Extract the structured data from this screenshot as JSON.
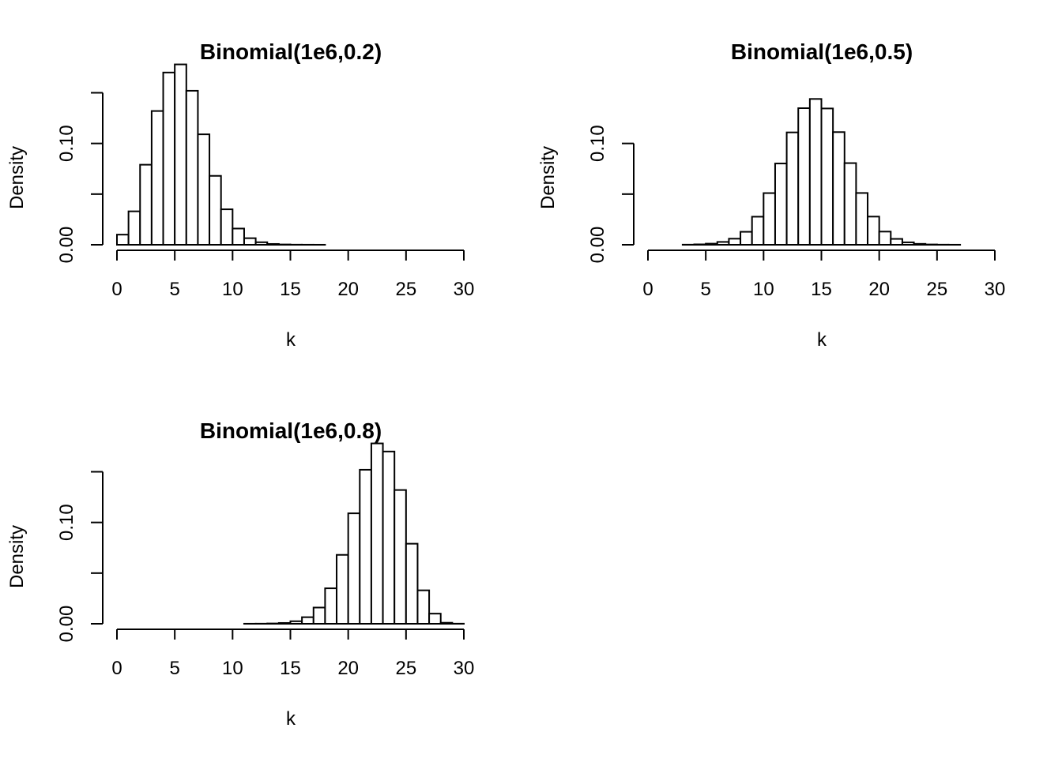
{
  "chart_data": [
    {
      "type": "bar",
      "title": "Binomial(1e6,0.2)",
      "xlabel": "k",
      "ylabel": "Density",
      "xlim": [
        0,
        30
      ],
      "ylim": [
        0,
        0.15
      ],
      "x_ticks": [
        0,
        5,
        10,
        15,
        20,
        25,
        30
      ],
      "y_ticks": [
        0,
        0.05,
        0.1,
        0.15
      ],
      "y_tick_labels": [
        "0.00",
        "",
        "0.10",
        ""
      ],
      "bin_width": 1,
      "bin_starts": [
        0,
        1,
        2,
        3,
        4,
        5,
        6,
        7,
        8,
        9,
        10,
        11,
        12,
        13,
        14,
        15,
        16,
        17
      ],
      "values": [
        0.01,
        0.033,
        0.079,
        0.132,
        0.17,
        0.178,
        0.152,
        0.109,
        0.068,
        0.035,
        0.016,
        0.0065,
        0.0025,
        0.0008,
        0.0003,
        0.0001,
        5e-05,
        2e-05
      ]
    },
    {
      "type": "bar",
      "title": "Binomial(1e6,0.5)",
      "xlabel": "k",
      "ylabel": "Density",
      "xlim": [
        0,
        30
      ],
      "ylim": [
        0,
        0.15
      ],
      "x_ticks": [
        0,
        5,
        10,
        15,
        20,
        25,
        30
      ],
      "y_ticks": [
        0,
        0.05,
        0.1
      ],
      "y_tick_labels": [
        "0.00",
        "",
        "0.10"
      ],
      "bin_width": 1,
      "bin_starts": [
        3,
        4,
        5,
        6,
        7,
        8,
        9,
        10,
        11,
        12,
        13,
        14,
        15,
        16,
        17,
        18,
        19,
        20,
        21,
        22,
        23,
        24,
        25,
        26
      ],
      "values": [
        0.0001,
        0.0004,
        0.0011,
        0.0028,
        0.006,
        0.0128,
        0.0277,
        0.051,
        0.0802,
        0.1109,
        0.1348,
        0.1439,
        0.1345,
        0.1112,
        0.0806,
        0.0511,
        0.0278,
        0.013,
        0.0058,
        0.0024,
        0.0009,
        0.0003,
        0.0001,
        4e-05
      ]
    },
    {
      "type": "bar",
      "title": "Binomial(1e6,0.8)",
      "xlabel": "k",
      "ylabel": "Density",
      "xlim": [
        0,
        30
      ],
      "ylim": [
        0,
        0.15
      ],
      "x_ticks": [
        0,
        5,
        10,
        15,
        20,
        25,
        30
      ],
      "y_ticks": [
        0,
        0.05,
        0.1,
        0.15
      ],
      "y_tick_labels": [
        "0.00",
        "",
        "0.10",
        ""
      ],
      "bin_width": 1,
      "bin_starts": [
        11,
        12,
        13,
        14,
        15,
        16,
        17,
        18,
        19,
        20,
        21,
        22,
        23,
        24,
        25,
        26,
        27,
        28,
        29
      ],
      "values": [
        5e-05,
        0.0001,
        0.0003,
        0.0008,
        0.0025,
        0.0065,
        0.016,
        0.035,
        0.068,
        0.109,
        0.152,
        0.178,
        0.17,
        0.132,
        0.079,
        0.033,
        0.01,
        0.001,
        0.0001
      ]
    }
  ]
}
